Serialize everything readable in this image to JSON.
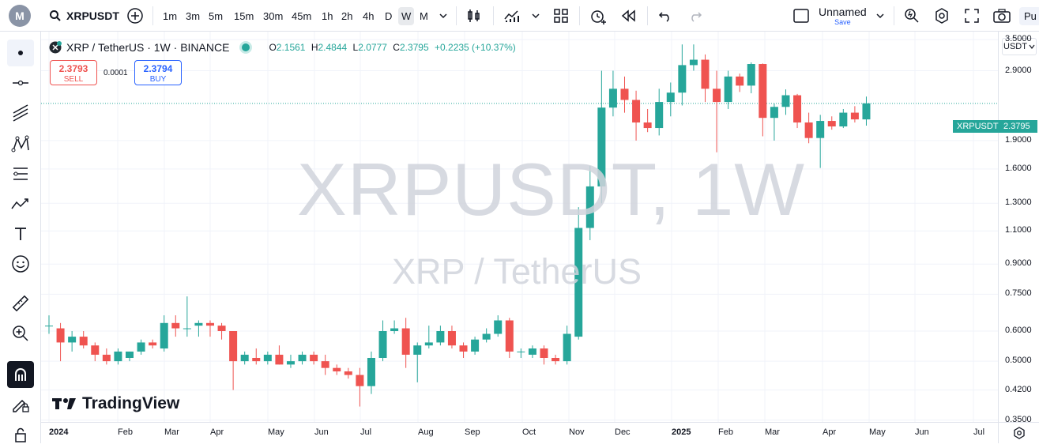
{
  "topbar": {
    "logo": "M",
    "symbol": "XRPUSDT",
    "intervals": [
      "1m",
      "3m",
      "5m",
      "15m",
      "30m",
      "45m",
      "1h",
      "2h",
      "4h",
      "D",
      "W",
      "M"
    ],
    "active_interval": "W",
    "layout_name": "Unnamed",
    "save_label": "Save",
    "publish_label": "Pu"
  },
  "legend": {
    "title": "XRP / TetherUS · 1W · BINANCE",
    "o_label": "O",
    "o": "2.1561",
    "h_label": "H",
    "h": "2.4844",
    "l_label": "L",
    "l": "2.0777",
    "c_label": "C",
    "c": "2.3795",
    "change": "+0.2235 (+10.37%)"
  },
  "trade": {
    "sell_price": "2.3793",
    "sell_label": "SELL",
    "spread": "0.0001",
    "buy_price": "2.3794",
    "buy_label": "BUY"
  },
  "watermark": {
    "symbol": "XRPUSDT, 1W",
    "name": "XRP / TetherUS"
  },
  "brand": "TradingView",
  "price_scale": {
    "currency": "USDT",
    "ticks": [
      "3.5000",
      "2.9000",
      "1.9000",
      "1.6000",
      "1.3000",
      "1.1000",
      "0.9000",
      "0.7500",
      "0.6000",
      "0.5000",
      "0.4200",
      "0.3500"
    ],
    "last_symbol": "XRPUSDT",
    "last_price": "2.3795"
  },
  "time_scale": {
    "labels": [
      "2024",
      "Feb",
      "Mar",
      "Apr",
      "May",
      "Jun",
      "Jul",
      "Aug",
      "Sep",
      "Oct",
      "Nov",
      "Dec",
      "2025",
      "Feb",
      "Mar",
      "Apr",
      "May",
      "Jun",
      "Jul"
    ]
  },
  "colors": {
    "up": "#26a69a",
    "down": "#ef5350",
    "accent": "#2962ff"
  },
  "chart_data": {
    "type": "candlestick",
    "interval": "1W",
    "scale": "log",
    "ylim": [
      0.33,
      3.8
    ],
    "candles": [
      {
        "o": 0.62,
        "h": 0.66,
        "l": 0.59,
        "c": 0.62
      },
      {
        "o": 0.61,
        "h": 0.63,
        "l": 0.5,
        "c": 0.56
      },
      {
        "o": 0.56,
        "h": 0.6,
        "l": 0.53,
        "c": 0.58
      },
      {
        "o": 0.58,
        "h": 0.6,
        "l": 0.54,
        "c": 0.55
      },
      {
        "o": 0.55,
        "h": 0.56,
        "l": 0.5,
        "c": 0.52
      },
      {
        "o": 0.52,
        "h": 0.54,
        "l": 0.49,
        "c": 0.5
      },
      {
        "o": 0.5,
        "h": 0.54,
        "l": 0.49,
        "c": 0.53
      },
      {
        "o": 0.51,
        "h": 0.53,
        "l": 0.5,
        "c": 0.53
      },
      {
        "o": 0.53,
        "h": 0.57,
        "l": 0.52,
        "c": 0.56
      },
      {
        "o": 0.56,
        "h": 0.57,
        "l": 0.54,
        "c": 0.55
      },
      {
        "o": 0.54,
        "h": 0.66,
        "l": 0.53,
        "c": 0.63
      },
      {
        "o": 0.63,
        "h": 0.66,
        "l": 0.58,
        "c": 0.61
      },
      {
        "o": 0.61,
        "h": 0.74,
        "l": 0.58,
        "c": 0.61
      },
      {
        "o": 0.62,
        "h": 0.64,
        "l": 0.58,
        "c": 0.63
      },
      {
        "o": 0.63,
        "h": 0.64,
        "l": 0.58,
        "c": 0.62
      },
      {
        "o": 0.62,
        "h": 0.63,
        "l": 0.57,
        "c": 0.6
      },
      {
        "o": 0.6,
        "h": 0.6,
        "l": 0.42,
        "c": 0.5
      },
      {
        "o": 0.5,
        "h": 0.53,
        "l": 0.49,
        "c": 0.52
      },
      {
        "o": 0.51,
        "h": 0.54,
        "l": 0.49,
        "c": 0.5
      },
      {
        "o": 0.5,
        "h": 0.53,
        "l": 0.49,
        "c": 0.52
      },
      {
        "o": 0.52,
        "h": 0.55,
        "l": 0.49,
        "c": 0.49
      },
      {
        "o": 0.49,
        "h": 0.52,
        "l": 0.48,
        "c": 0.5
      },
      {
        "o": 0.5,
        "h": 0.53,
        "l": 0.49,
        "c": 0.52
      },
      {
        "o": 0.52,
        "h": 0.53,
        "l": 0.49,
        "c": 0.5
      },
      {
        "o": 0.5,
        "h": 0.52,
        "l": 0.46,
        "c": 0.48
      },
      {
        "o": 0.48,
        "h": 0.49,
        "l": 0.46,
        "c": 0.47
      },
      {
        "o": 0.47,
        "h": 0.48,
        "l": 0.45,
        "c": 0.46
      },
      {
        "o": 0.46,
        "h": 0.48,
        "l": 0.38,
        "c": 0.43
      },
      {
        "o": 0.43,
        "h": 0.53,
        "l": 0.41,
        "c": 0.51
      },
      {
        "o": 0.51,
        "h": 0.64,
        "l": 0.5,
        "c": 0.6
      },
      {
        "o": 0.6,
        "h": 0.64,
        "l": 0.59,
        "c": 0.61
      },
      {
        "o": 0.61,
        "h": 0.65,
        "l": 0.48,
        "c": 0.52
      },
      {
        "o": 0.52,
        "h": 0.56,
        "l": 0.44,
        "c": 0.55
      },
      {
        "o": 0.55,
        "h": 0.62,
        "l": 0.54,
        "c": 0.56
      },
      {
        "o": 0.56,
        "h": 0.62,
        "l": 0.55,
        "c": 0.6
      },
      {
        "o": 0.6,
        "h": 0.62,
        "l": 0.54,
        "c": 0.55
      },
      {
        "o": 0.55,
        "h": 0.56,
        "l": 0.51,
        "c": 0.53
      },
      {
        "o": 0.53,
        "h": 0.58,
        "l": 0.52,
        "c": 0.57
      },
      {
        "o": 0.57,
        "h": 0.61,
        "l": 0.56,
        "c": 0.59
      },
      {
        "o": 0.59,
        "h": 0.66,
        "l": 0.58,
        "c": 0.64
      },
      {
        "o": 0.64,
        "h": 0.65,
        "l": 0.51,
        "c": 0.53
      },
      {
        "o": 0.53,
        "h": 0.54,
        "l": 0.51,
        "c": 0.53
      },
      {
        "o": 0.52,
        "h": 0.55,
        "l": 0.51,
        "c": 0.54
      },
      {
        "o": 0.54,
        "h": 0.55,
        "l": 0.49,
        "c": 0.51
      },
      {
        "o": 0.51,
        "h": 0.52,
        "l": 0.49,
        "c": 0.5
      },
      {
        "o": 0.5,
        "h": 0.62,
        "l": 0.49,
        "c": 0.59
      },
      {
        "o": 0.58,
        "h": 1.27,
        "l": 0.57,
        "c": 1.12
      },
      {
        "o": 1.12,
        "h": 1.63,
        "l": 1.04,
        "c": 1.44
      },
      {
        "o": 1.44,
        "h": 2.9,
        "l": 1.3,
        "c": 2.32
      },
      {
        "o": 2.32,
        "h": 2.9,
        "l": 2.2,
        "c": 2.6
      },
      {
        "o": 2.6,
        "h": 2.8,
        "l": 2.25,
        "c": 2.43
      },
      {
        "o": 2.43,
        "h": 2.57,
        "l": 1.9,
        "c": 2.12
      },
      {
        "o": 2.12,
        "h": 2.3,
        "l": 2.0,
        "c": 2.05
      },
      {
        "o": 2.05,
        "h": 2.6,
        "l": 1.96,
        "c": 2.4
      },
      {
        "o": 2.4,
        "h": 2.7,
        "l": 2.2,
        "c": 2.54
      },
      {
        "o": 2.54,
        "h": 3.4,
        "l": 2.35,
        "c": 3.0
      },
      {
        "o": 3.0,
        "h": 3.4,
        "l": 2.9,
        "c": 3.1
      },
      {
        "o": 3.1,
        "h": 3.2,
        "l": 2.4,
        "c": 2.6
      },
      {
        "o": 2.6,
        "h": 2.9,
        "l": 1.77,
        "c": 2.4
      },
      {
        "o": 2.4,
        "h": 2.9,
        "l": 2.3,
        "c": 2.8
      },
      {
        "o": 2.8,
        "h": 2.85,
        "l": 2.55,
        "c": 2.65
      },
      {
        "o": 2.65,
        "h": 3.05,
        "l": 2.53,
        "c": 3.02
      },
      {
        "o": 3.02,
        "h": 3.03,
        "l": 1.95,
        "c": 2.18
      },
      {
        "o": 2.18,
        "h": 2.38,
        "l": 1.9,
        "c": 2.33
      },
      {
        "o": 2.33,
        "h": 2.59,
        "l": 2.22,
        "c": 2.5
      },
      {
        "o": 2.5,
        "h": 2.52,
        "l": 2.05,
        "c": 2.12
      },
      {
        "o": 2.12,
        "h": 2.25,
        "l": 1.87,
        "c": 1.93
      },
      {
        "o": 1.93,
        "h": 2.22,
        "l": 1.61,
        "c": 2.14
      },
      {
        "o": 2.14,
        "h": 2.2,
        "l": 2.03,
        "c": 2.07
      },
      {
        "o": 2.07,
        "h": 2.3,
        "l": 2.05,
        "c": 2.25
      },
      {
        "o": 2.25,
        "h": 2.34,
        "l": 2.12,
        "c": 2.16
      },
      {
        "o": 2.16,
        "h": 2.48,
        "l": 2.08,
        "c": 2.38
      }
    ]
  }
}
